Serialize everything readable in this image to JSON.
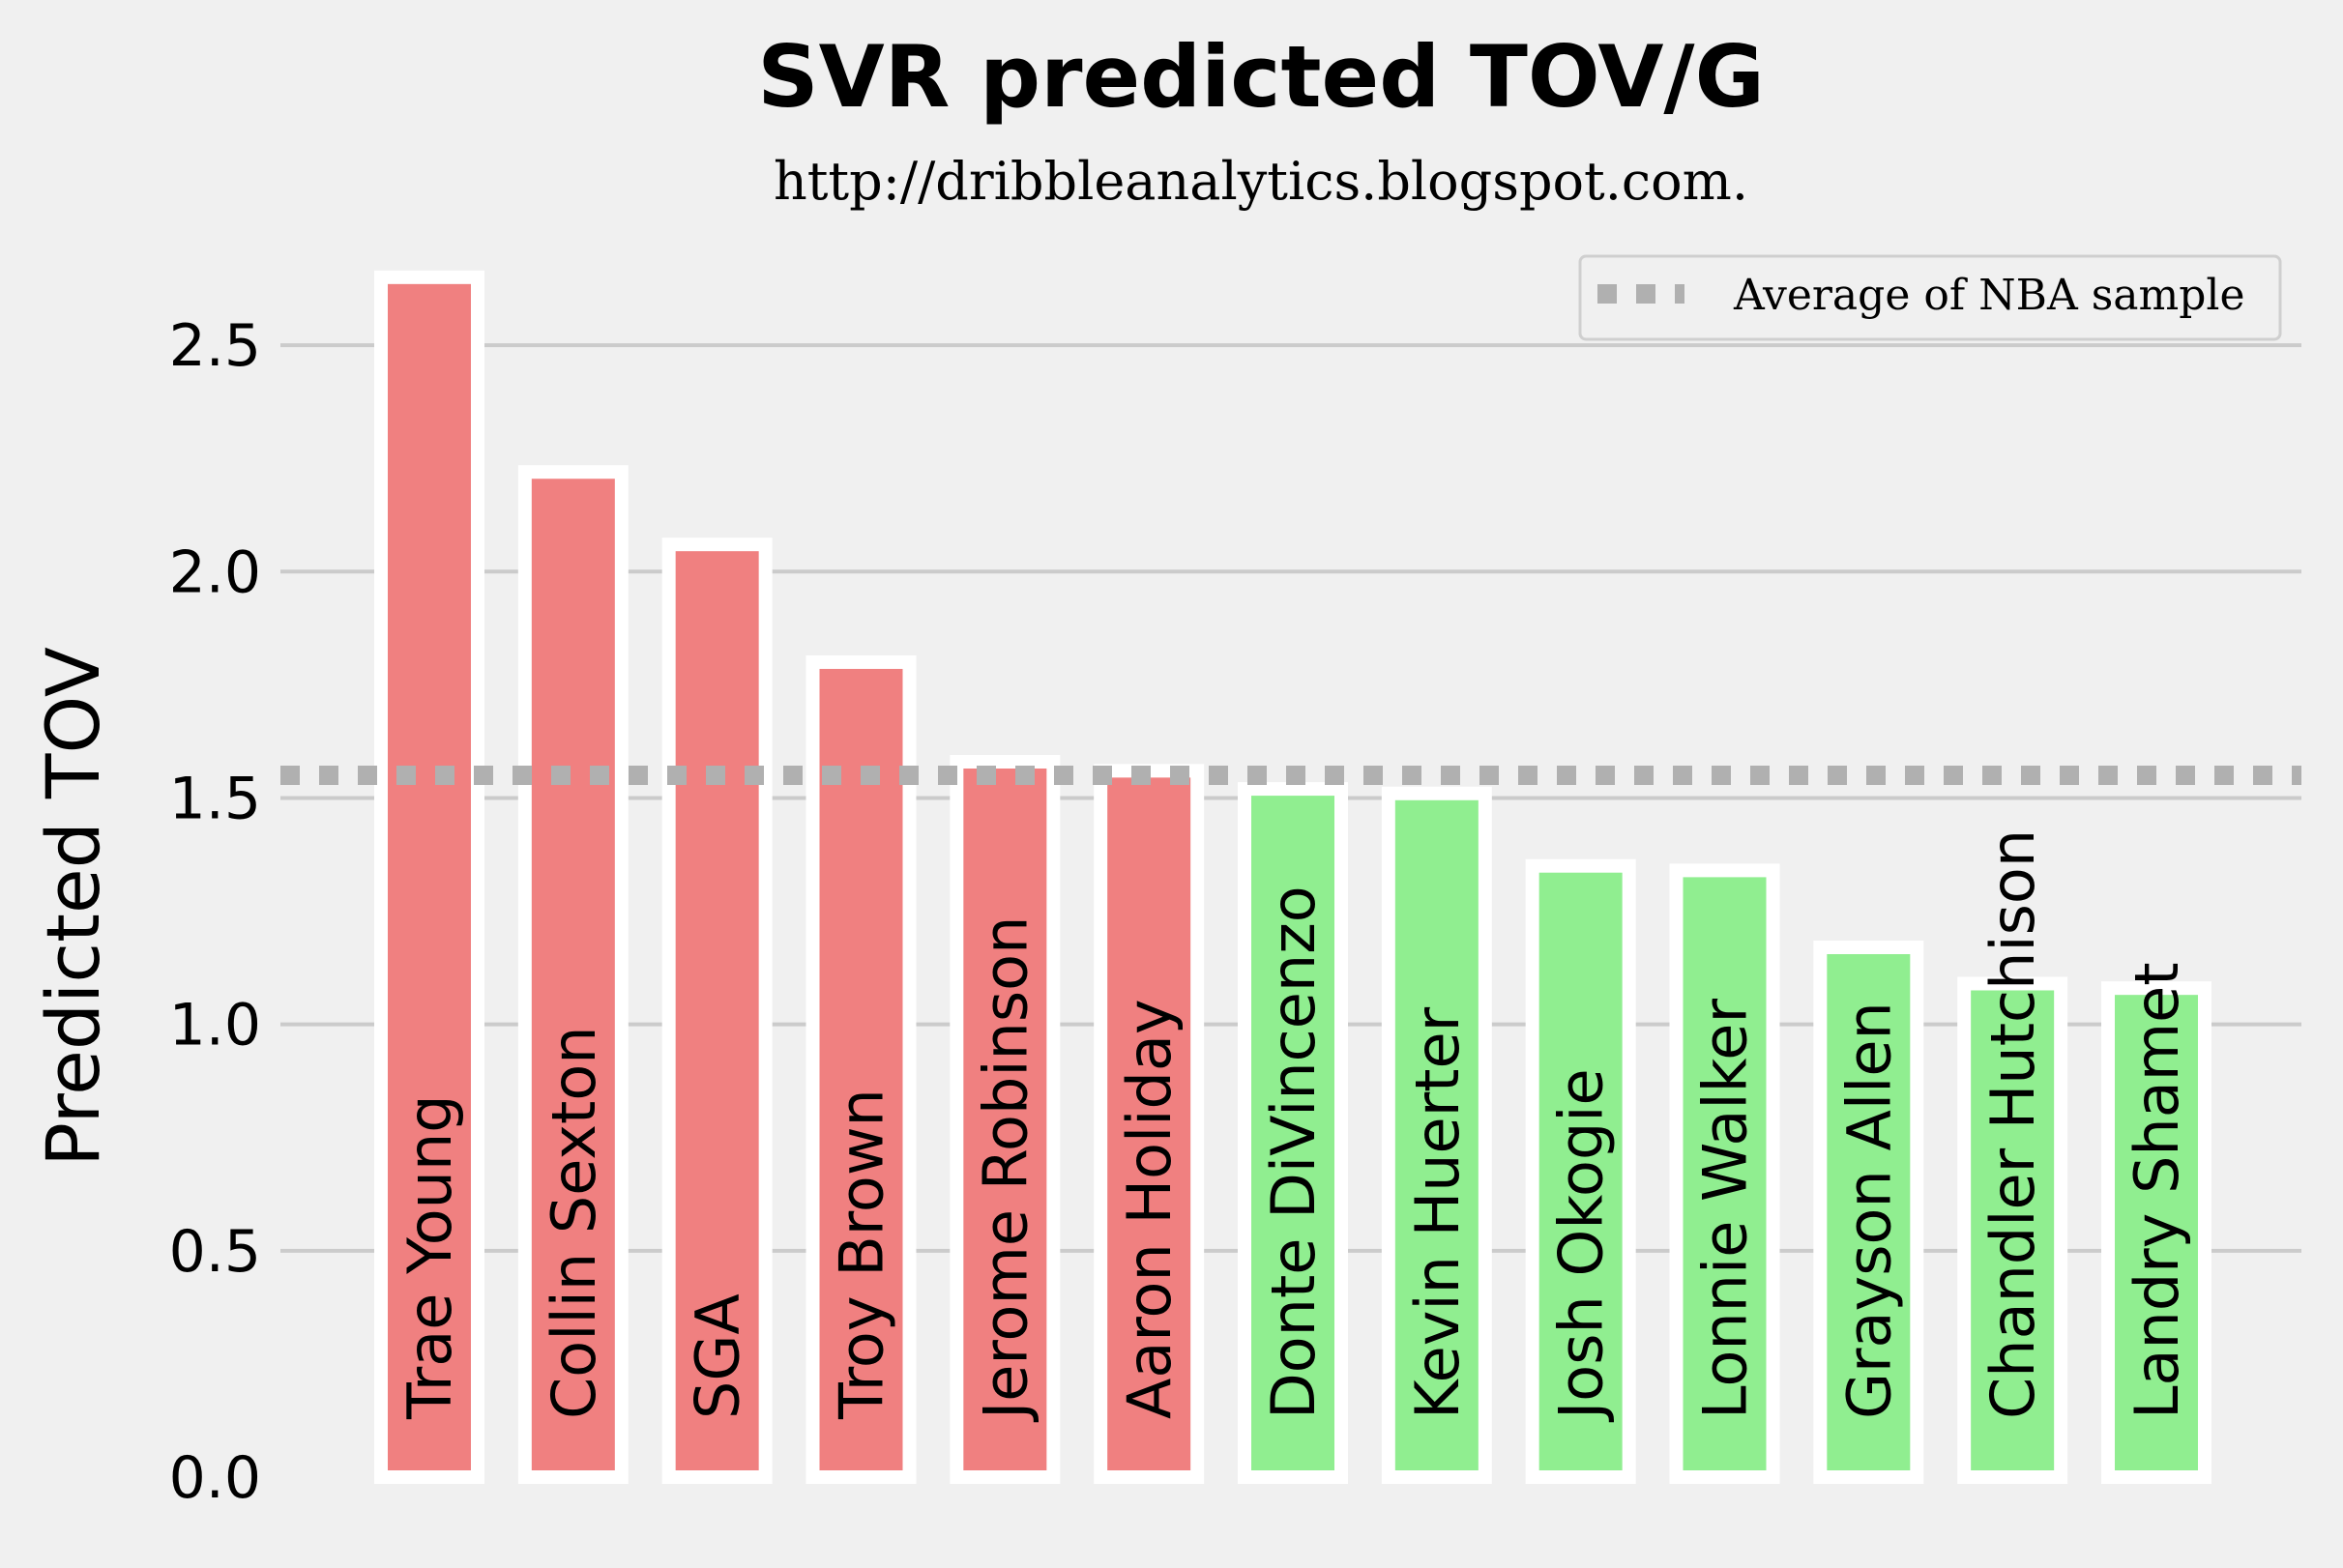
{
  "chart_data": {
    "type": "bar",
    "title": "SVR predicted TOV/G",
    "subtitle": "http://dribbleanalytics.blogspot.com.",
    "ylabel": "Predicted TOV",
    "xlabel": "",
    "ylim": [
      0,
      2.75
    ],
    "yticks": [
      0.0,
      0.5,
      1.0,
      1.5,
      2.0,
      2.5
    ],
    "ytick_labels": [
      "0.0",
      "0.5",
      "1.0",
      "1.5",
      "2.0",
      "2.5"
    ],
    "grid": "horizontal",
    "categories": [
      "Trae Young",
      "Collin Sexton",
      "SGA",
      "Troy Brown",
      "Jerome Robinson",
      "Aaron Holiday",
      "Donte DiVincenzo",
      "Kevin Huerter",
      "Josh Okogie",
      "Lonnie Walker",
      "Grayson Allen",
      "Chandler Hutchison",
      "Landry Shamet"
    ],
    "values": [
      2.65,
      2.22,
      2.06,
      1.8,
      1.58,
      1.56,
      1.52,
      1.51,
      1.35,
      1.34,
      1.17,
      1.09,
      1.08
    ],
    "bar_colors": [
      "#f08080",
      "#f08080",
      "#f08080",
      "#f08080",
      "#f08080",
      "#f08080",
      "#90ee90",
      "#90ee90",
      "#90ee90",
      "#90ee90",
      "#90ee90",
      "#90ee90",
      "#90ee90"
    ],
    "reference_line": {
      "label": "Average of NBA sample",
      "value": 1.55,
      "color": "#b0b0b0",
      "style": "dotted"
    },
    "legend": {
      "placement": "top-right",
      "entries": [
        "Average of NBA sample"
      ]
    },
    "colors": {
      "background": "#f0f0f0",
      "grid": "#cbcbcb",
      "bar_edge": "#ffffff",
      "text": "#000000"
    }
  }
}
